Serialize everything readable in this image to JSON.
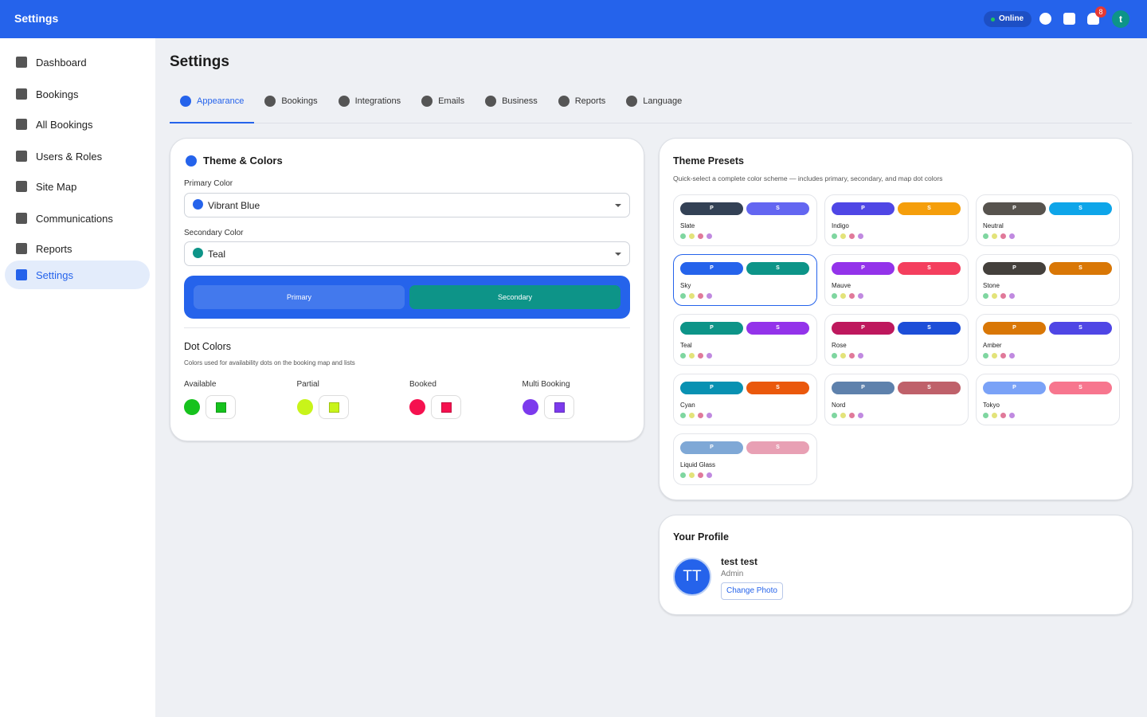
{
  "header": {
    "title": "Settings",
    "status": "Online",
    "notification_count": 8,
    "avatar": "t"
  },
  "sidebar": {
    "items": [
      "Dashboard",
      "Bookings",
      "All Bookings",
      "Users & Roles",
      "Site Map",
      "Communications",
      "Reports",
      "Settings"
    ],
    "active": "Settings"
  },
  "page_title": "Settings",
  "tabs": {
    "items": [
      "Appearance",
      "Bookings",
      "Integrations",
      "Emails",
      "Business",
      "Reports",
      "Language"
    ],
    "active": "Appearance"
  },
  "theme_colors": {
    "title": "Theme & Colors",
    "primary_label": "Primary Color",
    "primary_value": "Vibrant Blue",
    "primary_color": "#2563eb",
    "secondary_label": "Secondary Color",
    "secondary_value": "Teal",
    "secondary_color": "#0d9488",
    "preview_primary": "Primary",
    "preview_secondary": "Secondary"
  },
  "dot_colors": {
    "title": "Dot Colors",
    "description": "Colors used for availability dots on the booking map and lists",
    "items": [
      {
        "label": "Available",
        "color": "#16c21d"
      },
      {
        "label": "Partial",
        "color": "#c8f41a"
      },
      {
        "label": "Booked",
        "color": "#f5114f"
      },
      {
        "label": "Multi Booking",
        "color": "#7c3aed"
      }
    ]
  },
  "theme_presets": {
    "title": "Theme Presets",
    "description": "Quick-select a complete color scheme — includes primary, secondary, and map dot colors",
    "primary_short": "P",
    "secondary_short": "S",
    "selected": "Sky",
    "dot_colors": [
      "#7fd6a0",
      "#e3e37a",
      "#e07a9a",
      "#c08ae0"
    ],
    "presets": [
      {
        "name": "Slate",
        "primary": "#334155",
        "secondary": "#6366f1"
      },
      {
        "name": "Indigo",
        "primary": "#4f46e5",
        "secondary": "#f59e0b"
      },
      {
        "name": "Neutral",
        "primary": "#57534e",
        "secondary": "#0ea5e9"
      },
      {
        "name": "Sky",
        "primary": "#2563eb",
        "secondary": "#0d9488"
      },
      {
        "name": "Mauve",
        "primary": "#9333ea",
        "secondary": "#f43f5e"
      },
      {
        "name": "Stone",
        "primary": "#44403c",
        "secondary": "#d97706"
      },
      {
        "name": "Teal",
        "primary": "#0d9488",
        "secondary": "#9333ea"
      },
      {
        "name": "Rose",
        "primary": "#be185d",
        "secondary": "#1d4ed8"
      },
      {
        "name": "Amber",
        "primary": "#d97706",
        "secondary": "#4f46e5"
      },
      {
        "name": "Cyan",
        "primary": "#0891b2",
        "secondary": "#ea580c"
      },
      {
        "name": "Nord",
        "primary": "#5e81ac",
        "secondary": "#bf616a"
      },
      {
        "name": "Tokyo",
        "primary": "#7aa2f7",
        "secondary": "#f7768e"
      },
      {
        "name": "Liquid Glass",
        "primary": "#7fa8d6",
        "secondary": "#e8a0b4"
      }
    ]
  },
  "profile": {
    "title": "Your Profile",
    "initials": "TT",
    "name": "test test",
    "role": "Admin",
    "button": "Change Photo"
  }
}
